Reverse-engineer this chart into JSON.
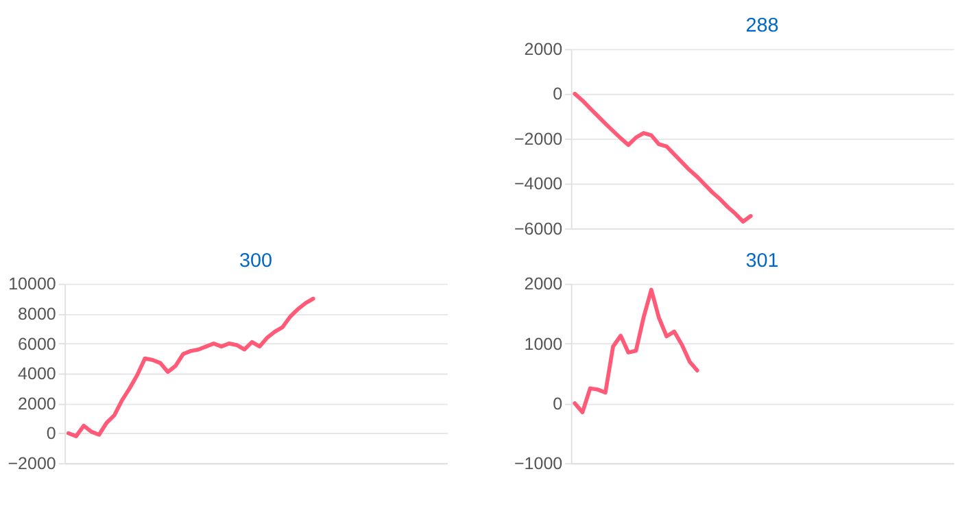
{
  "chart_data": [
    {
      "type": "line",
      "title": "288",
      "categories": [
        null,
        null,
        null,
        null,
        null,
        null,
        null,
        null,
        null,
        null,
        null,
        null,
        null,
        null,
        null,
        null,
        null,
        null,
        null,
        null,
        null,
        null,
        null,
        null,
        null,
        null,
        null,
        null,
        null,
        null,
        null,
        null,
        null,
        null,
        null,
        null,
        null,
        null,
        null,
        null,
        null,
        null,
        null,
        null,
        null,
        null,
        null,
        null,
        null,
        null
      ],
      "series": [
        {
          "color": "#ff5a78",
          "values": [
            0,
            -300,
            -650,
            -990,
            -1330,
            -1660,
            -1980,
            -2280,
            -1950,
            -1750,
            -1850,
            -2250,
            -2350,
            -2700,
            -3050,
            -3400,
            -3700,
            -4050,
            -4400,
            -4700,
            -5050,
            -5350,
            -5700,
            -5450,
            null,
            null,
            null,
            null,
            null,
            null,
            null,
            null,
            null,
            null,
            null,
            null,
            null,
            null,
            null,
            null,
            null,
            null,
            null,
            null,
            null,
            null,
            null,
            null,
            null,
            null
          ]
        }
      ],
      "ylim": [
        -6000,
        2000
      ],
      "yticks": [
        -6000,
        -4000,
        -2000,
        0,
        2000
      ],
      "grid": "y",
      "tick_labels": "y",
      "legend": false,
      "marker": "none",
      "line_style": "solid"
    },
    {
      "type": "line",
      "title": "300",
      "categories": [
        null,
        null,
        null,
        null,
        null,
        null,
        null,
        null,
        null,
        null,
        null,
        null,
        null,
        null,
        null,
        null,
        null,
        null,
        null,
        null,
        null,
        null,
        null,
        null,
        null,
        null,
        null,
        null,
        null,
        null,
        null,
        null,
        null,
        null,
        null,
        null,
        null,
        null,
        null,
        null,
        null,
        null,
        null,
        null,
        null,
        null,
        null,
        null,
        null,
        null
      ],
      "series": [
        {
          "color": "#ff5a78",
          "values": [
            0,
            -200,
            500,
            100,
            -100,
            700,
            1200,
            2200,
            3000,
            3900,
            5000,
            4900,
            4700,
            4100,
            4500,
            5300,
            5500,
            5600,
            5800,
            6000,
            5800,
            6000,
            5900,
            5600,
            6100,
            5800,
            6400,
            6800,
            7100,
            7800,
            8300,
            8700,
            9000,
            null,
            null,
            null,
            null,
            null,
            null,
            null,
            null,
            null,
            null,
            null,
            null,
            null,
            null,
            null,
            null,
            null
          ]
        }
      ],
      "ylim": [
        -2000,
        10000
      ],
      "yticks": [
        -2000,
        0,
        2000,
        4000,
        6000,
        8000,
        10000
      ],
      "grid": "y",
      "tick_labels": "y",
      "legend": false,
      "marker": "none",
      "line_style": "solid"
    },
    {
      "type": "line",
      "title": "301",
      "categories": [
        null,
        null,
        null,
        null,
        null,
        null,
        null,
        null,
        null,
        null,
        null,
        null,
        null,
        null,
        null,
        null,
        null,
        null,
        null,
        null,
        null,
        null,
        null,
        null,
        null,
        null,
        null,
        null,
        null,
        null,
        null,
        null,
        null,
        null,
        null,
        null,
        null,
        null,
        null,
        null,
        null,
        null,
        null,
        null,
        null,
        null,
        null,
        null,
        null,
        null
      ],
      "series": [
        {
          "color": "#ff5a78",
          "values": [
            0,
            -150,
            250,
            230,
            180,
            950,
            1130,
            850,
            880,
            1440,
            1900,
            1430,
            1120,
            1200,
            980,
            700,
            550,
            null,
            null,
            null,
            null,
            null,
            null,
            null,
            null,
            null,
            null,
            null,
            null,
            null,
            null,
            null,
            null,
            null,
            null,
            null,
            null,
            null,
            null,
            null,
            null,
            null,
            null,
            null,
            null,
            null,
            null,
            null,
            null,
            null
          ]
        }
      ],
      "ylim": [
        -1000,
        2000
      ],
      "yticks": [
        -1000,
        0,
        1000,
        2000
      ],
      "grid": "y",
      "tick_labels": "y",
      "legend": false,
      "marker": "none",
      "line_style": "solid"
    }
  ]
}
